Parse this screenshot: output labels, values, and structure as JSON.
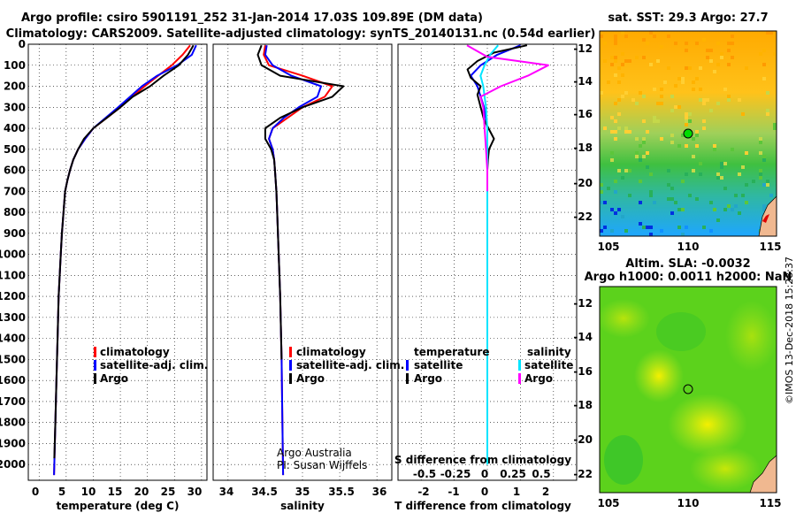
{
  "title_line1": "Argo profile: csiro 5901191_252 31-Jan-2014 17.03S 109.89E (DM data)",
  "title_line2": "Climatology: CARS2009. Satellite-adjusted climatology: synTS_20140131.nc (0.54d earlier)",
  "timestamp": "©IMOS 13-Dec-2018 15:28:37",
  "colors": {
    "climatology": "#ff0000",
    "satellite": "#0000ff",
    "argo": "#000000",
    "argo_sal_diff": "#ff00ff",
    "sat_sal_diff": "#00e5ff"
  },
  "chart_data": [
    {
      "type": "line",
      "panel": "temperature",
      "xlabel": "temperature (deg C)",
      "xlim": [
        -2,
        31
      ],
      "xticks": [
        "0",
        "5",
        "10",
        "15",
        "20",
        "25",
        "30"
      ],
      "ylim": [
        0,
        2075
      ],
      "yticks": [
        "0",
        "100",
        "200",
        "300",
        "400",
        "500",
        "600",
        "700",
        "800",
        "900",
        "1000",
        "1100",
        "1200",
        "1300",
        "1400",
        "1500",
        "1600",
        "1700",
        "1800",
        "1900",
        "2000"
      ],
      "y_reversed": true,
      "legend": [
        "climatology",
        "satellite-adj. clim.",
        "Argo"
      ],
      "series": [
        {
          "name": "climatology",
          "color": "#ff0000",
          "x": [
            27.9,
            26.5,
            24.5,
            22.0,
            19.5,
            17.2,
            15.0,
            12.5,
            10.0,
            8.5,
            7.2,
            6.3,
            5.7,
            5.2,
            4.8,
            4.5,
            4.2,
            4.0,
            3.8,
            3.6,
            3.4,
            3.2,
            3.0,
            2.8,
            2.75
          ],
          "y": [
            5,
            50,
            100,
            150,
            200,
            250,
            300,
            350,
            400,
            450,
            500,
            550,
            600,
            650,
            700,
            800,
            900,
            1000,
            1100,
            1200,
            1400,
            1600,
            1800,
            2000,
            2050
          ]
        },
        {
          "name": "satellite-adj. clim.",
          "color": "#0000ff",
          "x": [
            29.0,
            28.2,
            25.5,
            21.8,
            19.0,
            16.8,
            14.6,
            12.3,
            10.0,
            8.5,
            7.2,
            6.3,
            5.7,
            5.2,
            4.8,
            4.5,
            4.2,
            4.0,
            3.8,
            3.6,
            3.4,
            3.2,
            3.0,
            2.8,
            2.75
          ],
          "y": [
            5,
            50,
            100,
            150,
            200,
            250,
            300,
            350,
            400,
            450,
            500,
            550,
            600,
            650,
            700,
            800,
            900,
            1000,
            1100,
            1200,
            1400,
            1600,
            1800,
            2000,
            2050
          ]
        },
        {
          "name": "Argo",
          "color": "#000000",
          "x": [
            28.5,
            27.5,
            25.8,
            23.0,
            20.5,
            17.3,
            15.0,
            12.5,
            10.0,
            8.3,
            7.2,
            6.3,
            5.7,
            5.2,
            4.8,
            4.5,
            4.2,
            4.0,
            3.8,
            3.6,
            3.4,
            3.2,
            3.0,
            2.8
          ],
          "y": [
            5,
            50,
            100,
            150,
            200,
            250,
            300,
            350,
            400,
            450,
            500,
            550,
            600,
            650,
            700,
            800,
            900,
            1000,
            1100,
            1200,
            1400,
            1600,
            1800,
            1970
          ]
        }
      ]
    },
    {
      "type": "line",
      "panel": "salinity",
      "xlabel": "salinity",
      "xlim": [
        33.8,
        36.2
      ],
      "xticks": [
        "34",
        "34.5",
        "35",
        "35.5",
        "36"
      ],
      "ylim": [
        0,
        2075
      ],
      "y_reversed": true,
      "legend": [
        "climatology",
        "satellite-adj. clim.",
        "Argo"
      ],
      "annotation": [
        "Argo Australia",
        "PI: Susan Wijffels"
      ],
      "series": [
        {
          "name": "climatology",
          "color": "#ff0000",
          "x": [
            34.5,
            34.48,
            34.55,
            35.0,
            35.4,
            35.3,
            35.0,
            34.8,
            34.6,
            34.55,
            34.6,
            34.62,
            34.63,
            34.65,
            34.66,
            34.68,
            34.7,
            34.72,
            34.73,
            34.74
          ],
          "y": [
            5,
            50,
            100,
            150,
            200,
            250,
            300,
            350,
            400,
            450,
            500,
            550,
            600,
            700,
            800,
            1000,
            1200,
            1500,
            1800,
            2050
          ]
        },
        {
          "name": "satellite-adj. clim.",
          "color": "#0000ff",
          "x": [
            34.52,
            34.5,
            34.6,
            34.85,
            35.25,
            35.2,
            34.95,
            34.75,
            34.6,
            34.55,
            34.6,
            34.62,
            34.63,
            34.65,
            34.66,
            34.68,
            34.7,
            34.72,
            34.73,
            34.74
          ],
          "y": [
            5,
            50,
            100,
            150,
            200,
            250,
            300,
            350,
            400,
            450,
            500,
            550,
            600,
            700,
            800,
            1000,
            1200,
            1500,
            1800,
            2050
          ]
        },
        {
          "name": "Argo",
          "color": "#000000",
          "x": [
            34.45,
            34.4,
            34.45,
            34.7,
            35.55,
            35.4,
            35.0,
            34.7,
            34.5,
            34.5,
            34.58,
            34.62,
            34.63,
            34.65,
            34.66,
            34.68,
            34.7,
            34.72
          ],
          "y": [
            5,
            50,
            100,
            150,
            200,
            250,
            300,
            350,
            400,
            450,
            500,
            550,
            600,
            700,
            800,
            1000,
            1200,
            1500
          ]
        }
      ]
    },
    {
      "type": "line",
      "panel": "difference",
      "xlabel": "T difference from climatology",
      "xlabel_top": "S difference from climatology",
      "xlim": [
        -2.7,
        2.7
      ],
      "xticks": [
        "-2",
        "-1",
        "0",
        "1",
        "2"
      ],
      "xticks_top": [
        "-0.5",
        "-0.25",
        "0",
        "0.25",
        "0.5"
      ],
      "ylim": [
        0,
        2075
      ],
      "y_reversed": true,
      "legend_headers": [
        "temperature",
        "salinity"
      ],
      "legend": [
        "satellite",
        "Argo",
        "satellite",
        "Argo"
      ],
      "series": [
        {
          "name": "satellite",
          "color": "#0000ff",
          "x": [
            1.0,
            0.3,
            -0.2,
            -0.5,
            -0.3,
            -0.2,
            -0.1,
            0,
            0,
            0,
            0
          ],
          "y": [
            5,
            50,
            100,
            150,
            200,
            250,
            300,
            400,
            500,
            700,
            900
          ]
        },
        {
          "name": "Argo",
          "color": "#000000",
          "x": [
            1.2,
            0.2,
            -0.3,
            -0.6,
            -0.5,
            -0.2,
            -0.3,
            -0.2,
            -0.1,
            0.2,
            0.05,
            0.02,
            0,
            0,
            0,
            0,
            0
          ],
          "y": [
            5,
            40,
            80,
            120,
            160,
            200,
            240,
            300,
            360,
            450,
            500,
            550,
            600,
            700,
            900,
            1200,
            1900
          ]
        },
        {
          "name": "satellite",
          "color": "#00e5ff",
          "x": [
            0.08,
            0.02,
            -0.02,
            -0.05,
            -0.03,
            -0.02,
            -0.01,
            0,
            0,
            0,
            0,
            0,
            0
          ],
          "y": [
            5,
            50,
            100,
            150,
            200,
            250,
            300,
            400,
            500,
            700,
            1000,
            1500,
            2000
          ]
        },
        {
          "name": "Argo",
          "color": "#ff00ff",
          "x": [
            -0.15,
            0.0,
            0.45,
            0.3,
            0.1,
            -0.05,
            -0.03,
            -0.02,
            -0.01,
            0,
            0
          ],
          "y": [
            5,
            60,
            100,
            150,
            200,
            250,
            300,
            400,
            500,
            600,
            700
          ]
        }
      ]
    },
    {
      "type": "heatmap",
      "panel": "sst_map",
      "title": "sat. SST: 29.3 Argo: 27.7",
      "xticks": [
        "105",
        "110",
        "115"
      ],
      "yticks": [
        "-12",
        "-14",
        "-16",
        "-18",
        "-20",
        "-22"
      ],
      "xlim": [
        104.2,
        115.3
      ],
      "ylim": [
        -23.1,
        -11.2
      ],
      "marker": {
        "lon": 109.89,
        "lat": -17.03,
        "color": "#00dd00"
      }
    },
    {
      "type": "heatmap",
      "panel": "sla_map",
      "title_line1": "Altim. SLA: -0.0032",
      "title_line2": "Argo h1000: 0.0011 h2000: NaN",
      "xticks": [
        "105",
        "110",
        "115"
      ],
      "yticks": [
        "-12",
        "-14",
        "-16",
        "-18",
        "-20",
        "-22"
      ],
      "xlim": [
        104.2,
        115.3
      ],
      "ylim": [
        -23.1,
        -11.2
      ],
      "marker": {
        "lon": 109.89,
        "lat": -17.03,
        "color": "#55cc00"
      }
    }
  ]
}
